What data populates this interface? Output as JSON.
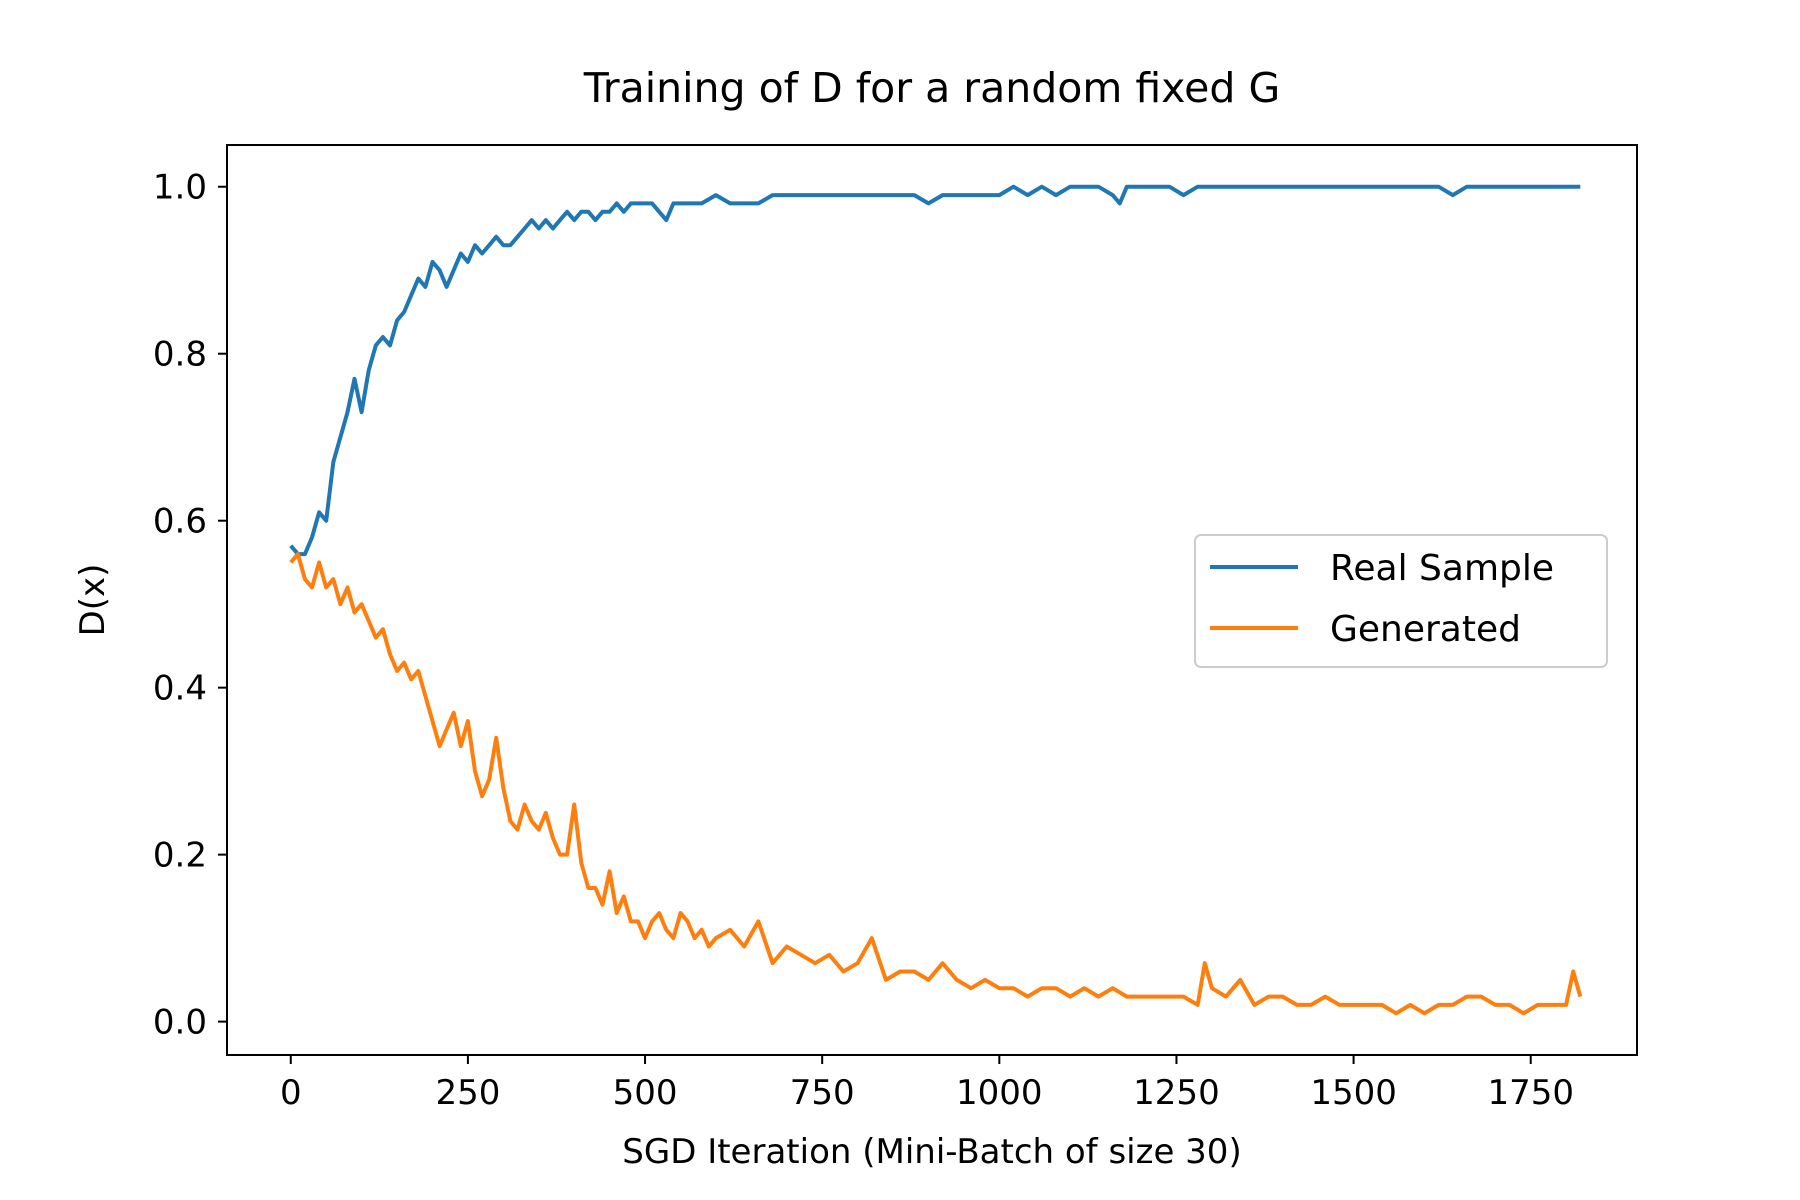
{
  "chart_data": {
    "type": "line",
    "title": "Training of D for a random fixed G",
    "xlabel": "SGD Iteration (Mini-Batch of size 30)",
    "ylabel": "D(x)",
    "xlim": [
      -90,
      1900
    ],
    "ylim": [
      -0.04,
      1.05
    ],
    "xticks": [
      0,
      250,
      500,
      750,
      1000,
      1250,
      1500,
      1750
    ],
    "xtick_labels": [
      "0",
      "250",
      "500",
      "750",
      "1000",
      "1250",
      "1500",
      "1750"
    ],
    "yticks": [
      0.0,
      0.2,
      0.4,
      0.6,
      0.8,
      1.0
    ],
    "ytick_labels": [
      "0.0",
      "0.2",
      "0.4",
      "0.6",
      "0.8",
      "1.0"
    ],
    "grid": false,
    "legend_position": "center-right",
    "series": [
      {
        "name": "Real Sample",
        "color": "#1f77b4",
        "x": [
          0,
          10,
          20,
          30,
          40,
          50,
          60,
          70,
          80,
          90,
          100,
          110,
          120,
          130,
          140,
          150,
          160,
          170,
          180,
          190,
          200,
          210,
          220,
          230,
          240,
          250,
          260,
          270,
          280,
          290,
          300,
          310,
          320,
          330,
          340,
          350,
          360,
          370,
          380,
          390,
          400,
          410,
          420,
          430,
          440,
          450,
          460,
          470,
          480,
          490,
          500,
          510,
          520,
          530,
          540,
          550,
          560,
          580,
          600,
          620,
          640,
          660,
          680,
          700,
          720,
          740,
          760,
          780,
          800,
          820,
          840,
          860,
          880,
          900,
          920,
          940,
          960,
          980,
          1000,
          1020,
          1040,
          1060,
          1080,
          1100,
          1120,
          1140,
          1160,
          1170,
          1180,
          1200,
          1220,
          1240,
          1260,
          1280,
          1300,
          1320,
          1340,
          1360,
          1380,
          1400,
          1420,
          1440,
          1460,
          1480,
          1500,
          1520,
          1540,
          1560,
          1580,
          1600,
          1620,
          1640,
          1660,
          1680,
          1700,
          1720,
          1740,
          1760,
          1780,
          1800,
          1820
        ],
        "values": [
          0.57,
          0.56,
          0.56,
          0.58,
          0.61,
          0.6,
          0.67,
          0.7,
          0.73,
          0.77,
          0.73,
          0.78,
          0.81,
          0.82,
          0.81,
          0.84,
          0.85,
          0.87,
          0.89,
          0.88,
          0.91,
          0.9,
          0.88,
          0.9,
          0.92,
          0.91,
          0.93,
          0.92,
          0.93,
          0.94,
          0.93,
          0.93,
          0.94,
          0.95,
          0.96,
          0.95,
          0.96,
          0.95,
          0.96,
          0.97,
          0.96,
          0.97,
          0.97,
          0.96,
          0.97,
          0.97,
          0.98,
          0.97,
          0.98,
          0.98,
          0.98,
          0.98,
          0.97,
          0.96,
          0.98,
          0.98,
          0.98,
          0.98,
          0.99,
          0.98,
          0.98,
          0.98,
          0.99,
          0.99,
          0.99,
          0.99,
          0.99,
          0.99,
          0.99,
          0.99,
          0.99,
          0.99,
          0.99,
          0.98,
          0.99,
          0.99,
          0.99,
          0.99,
          0.99,
          1.0,
          0.99,
          1.0,
          0.99,
          1.0,
          1.0,
          1.0,
          0.99,
          0.98,
          1.0,
          1.0,
          1.0,
          1.0,
          0.99,
          1.0,
          1.0,
          1.0,
          1.0,
          1.0,
          1.0,
          1.0,
          1.0,
          1.0,
          1.0,
          1.0,
          1.0,
          1.0,
          1.0,
          1.0,
          1.0,
          1.0,
          1.0,
          0.99,
          1.0,
          1.0,
          1.0,
          1.0,
          1.0,
          1.0,
          1.0,
          1.0,
          1.0
        ]
      },
      {
        "name": "Generated",
        "color": "#ff7f0e",
        "x": [
          0,
          10,
          20,
          30,
          40,
          50,
          60,
          70,
          80,
          90,
          100,
          110,
          120,
          130,
          140,
          150,
          160,
          170,
          180,
          190,
          200,
          210,
          220,
          230,
          240,
          250,
          260,
          270,
          280,
          290,
          300,
          310,
          320,
          330,
          340,
          350,
          360,
          370,
          380,
          390,
          400,
          410,
          420,
          430,
          440,
          450,
          460,
          470,
          480,
          490,
          500,
          510,
          520,
          530,
          540,
          550,
          560,
          570,
          580,
          590,
          600,
          620,
          640,
          660,
          680,
          700,
          720,
          740,
          760,
          780,
          800,
          820,
          840,
          860,
          880,
          900,
          920,
          940,
          960,
          980,
          1000,
          1020,
          1040,
          1060,
          1080,
          1100,
          1120,
          1140,
          1160,
          1180,
          1200,
          1220,
          1240,
          1260,
          1280,
          1290,
          1300,
          1320,
          1340,
          1360,
          1380,
          1400,
          1420,
          1440,
          1460,
          1480,
          1500,
          1520,
          1540,
          1560,
          1580,
          1600,
          1620,
          1640,
          1660,
          1680,
          1700,
          1720,
          1740,
          1760,
          1780,
          1800,
          1810,
          1820
        ],
        "values": [
          0.55,
          0.56,
          0.53,
          0.52,
          0.55,
          0.52,
          0.53,
          0.5,
          0.52,
          0.49,
          0.5,
          0.48,
          0.46,
          0.47,
          0.44,
          0.42,
          0.43,
          0.41,
          0.42,
          0.39,
          0.36,
          0.33,
          0.35,
          0.37,
          0.33,
          0.36,
          0.3,
          0.27,
          0.29,
          0.34,
          0.28,
          0.24,
          0.23,
          0.26,
          0.24,
          0.23,
          0.25,
          0.22,
          0.2,
          0.2,
          0.26,
          0.19,
          0.16,
          0.16,
          0.14,
          0.18,
          0.13,
          0.15,
          0.12,
          0.12,
          0.1,
          0.12,
          0.13,
          0.11,
          0.1,
          0.13,
          0.12,
          0.1,
          0.11,
          0.09,
          0.1,
          0.11,
          0.09,
          0.12,
          0.07,
          0.09,
          0.08,
          0.07,
          0.08,
          0.06,
          0.07,
          0.1,
          0.05,
          0.06,
          0.06,
          0.05,
          0.07,
          0.05,
          0.04,
          0.05,
          0.04,
          0.04,
          0.03,
          0.04,
          0.04,
          0.03,
          0.04,
          0.03,
          0.04,
          0.03,
          0.03,
          0.03,
          0.03,
          0.03,
          0.02,
          0.07,
          0.04,
          0.03,
          0.05,
          0.02,
          0.03,
          0.03,
          0.02,
          0.02,
          0.03,
          0.02,
          0.02,
          0.02,
          0.02,
          0.01,
          0.02,
          0.01,
          0.02,
          0.02,
          0.03,
          0.03,
          0.02,
          0.02,
          0.01,
          0.02,
          0.02,
          0.02,
          0.06,
          0.03
        ]
      }
    ]
  }
}
